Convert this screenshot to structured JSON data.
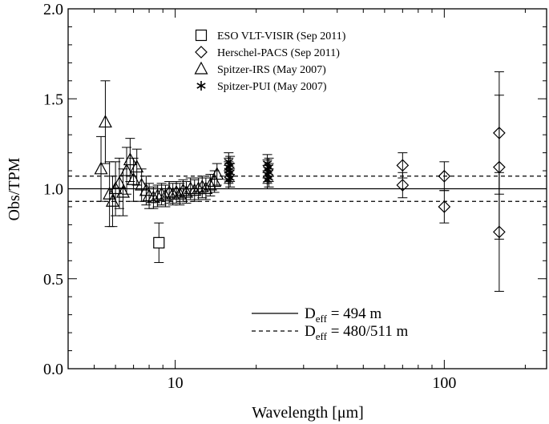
{
  "chart_data": {
    "type": "scatter",
    "xlabel": "Wavelength [μm]",
    "ylabel": "Obs/TPM",
    "xscale": "log",
    "xlim": [
      4,
      240
    ],
    "ylim": [
      0.0,
      2.0
    ],
    "x_ticks": [
      {
        "value": 10,
        "label": "10"
      },
      {
        "value": 100,
        "label": "100"
      }
    ],
    "y_ticks": [
      {
        "value": 0.0,
        "label": "0.0"
      },
      {
        "value": 0.5,
        "label": "0.5"
      },
      {
        "value": 1.0,
        "label": "1.0"
      },
      {
        "value": 1.5,
        "label": "1.5"
      },
      {
        "value": 2.0,
        "label": "2.0"
      }
    ],
    "reference_lines": [
      {
        "y": 1.0,
        "style": "solid"
      },
      {
        "y": 1.07,
        "style": "dashed"
      },
      {
        "y": 0.93,
        "style": "dashed"
      }
    ],
    "legend": {
      "placement": "top-center",
      "entries": [
        {
          "label": "ESO VLT-VISIR (Sep 2011)",
          "marker": "square"
        },
        {
          "label": "Herschel-PACS (Sep 2011)",
          "marker": "diamond"
        },
        {
          "label": "Spitzer-IRS (May 2007)",
          "marker": "triangle"
        },
        {
          "label": "Spitzer-PUI (May 2007)",
          "marker": "asterisk"
        }
      ]
    },
    "line_legend": {
      "placement": "bottom-center",
      "entries": [
        {
          "base": "D",
          "sub": "eff",
          "value": " = 494 m",
          "style": "solid"
        },
        {
          "base": "D",
          "sub": "eff",
          "value": " = 480/511 m",
          "style": "dashed"
        }
      ]
    },
    "series": [
      {
        "marker": "square",
        "points": [
          {
            "x": 8.7,
            "y": 0.7,
            "err": 0.11
          }
        ]
      },
      {
        "marker": "diamond",
        "points": [
          {
            "x": 70,
            "y": 1.13,
            "err": 0.07
          },
          {
            "x": 70,
            "y": 1.02,
            "err": 0.07
          },
          {
            "x": 100,
            "y": 1.07,
            "err": 0.08
          },
          {
            "x": 100,
            "y": 0.9,
            "err": 0.09
          },
          {
            "x": 160,
            "y": 1.31,
            "err": 0.34
          },
          {
            "x": 160,
            "y": 1.12,
            "err": 0.4
          },
          {
            "x": 160,
            "y": 0.76,
            "err": 0.33
          }
        ]
      },
      {
        "marker": "triangle",
        "points": [
          {
            "x": 5.3,
            "y": 1.11,
            "err": 0.18
          },
          {
            "x": 5.5,
            "y": 1.37,
            "err": 0.23
          },
          {
            "x": 5.7,
            "y": 0.97,
            "err": 0.18
          },
          {
            "x": 5.85,
            "y": 0.93,
            "err": 0.14
          },
          {
            "x": 6.0,
            "y": 1.0,
            "err": 0.15
          },
          {
            "x": 6.2,
            "y": 1.03,
            "err": 0.14
          },
          {
            "x": 6.4,
            "y": 0.98,
            "err": 0.13
          },
          {
            "x": 6.6,
            "y": 1.1,
            "err": 0.13
          },
          {
            "x": 6.8,
            "y": 1.16,
            "err": 0.12
          },
          {
            "x": 7.0,
            "y": 1.05,
            "err": 0.12
          },
          {
            "x": 7.2,
            "y": 1.12,
            "err": 0.1
          },
          {
            "x": 7.5,
            "y": 1.02,
            "err": 0.09
          },
          {
            "x": 7.8,
            "y": 0.99,
            "err": 0.08
          },
          {
            "x": 8.0,
            "y": 0.96,
            "err": 0.07
          },
          {
            "x": 8.3,
            "y": 0.95,
            "err": 0.06
          },
          {
            "x": 8.6,
            "y": 0.96,
            "err": 0.06
          },
          {
            "x": 8.9,
            "y": 0.97,
            "err": 0.06
          },
          {
            "x": 9.2,
            "y": 0.96,
            "err": 0.06
          },
          {
            "x": 9.5,
            "y": 0.98,
            "err": 0.06
          },
          {
            "x": 9.8,
            "y": 0.97,
            "err": 0.06
          },
          {
            "x": 10.1,
            "y": 0.98,
            "err": 0.06
          },
          {
            "x": 10.4,
            "y": 0.97,
            "err": 0.06
          },
          {
            "x": 10.7,
            "y": 0.99,
            "err": 0.06
          },
          {
            "x": 11.0,
            "y": 0.98,
            "err": 0.06
          },
          {
            "x": 11.4,
            "y": 1.0,
            "err": 0.06
          },
          {
            "x": 11.8,
            "y": 0.99,
            "err": 0.06
          },
          {
            "x": 12.2,
            "y": 1.0,
            "err": 0.06
          },
          {
            "x": 12.6,
            "y": 1.01,
            "err": 0.06
          },
          {
            "x": 13.0,
            "y": 1.0,
            "err": 0.06
          },
          {
            "x": 13.5,
            "y": 1.02,
            "err": 0.06
          },
          {
            "x": 14.0,
            "y": 1.04,
            "err": 0.06
          },
          {
            "x": 14.3,
            "y": 1.08,
            "err": 0.06
          }
        ]
      },
      {
        "marker": "asterisk",
        "points": [
          {
            "x": 15.8,
            "y": 1.15,
            "err": 0.05
          },
          {
            "x": 15.8,
            "y": 1.12,
            "err": 0.05
          },
          {
            "x": 15.8,
            "y": 1.1,
            "err": 0.05
          },
          {
            "x": 15.8,
            "y": 1.08,
            "err": 0.05
          },
          {
            "x": 15.8,
            "y": 1.05,
            "err": 0.05
          },
          {
            "x": 16.0,
            "y": 1.13,
            "err": 0.05
          },
          {
            "x": 16.0,
            "y": 1.09,
            "err": 0.05
          },
          {
            "x": 16.0,
            "y": 1.06,
            "err": 0.05
          },
          {
            "x": 22.0,
            "y": 1.14,
            "err": 0.05
          },
          {
            "x": 22.0,
            "y": 1.11,
            "err": 0.05
          },
          {
            "x": 22.0,
            "y": 1.08,
            "err": 0.05
          },
          {
            "x": 22.0,
            "y": 1.05,
            "err": 0.05
          },
          {
            "x": 22.3,
            "y": 1.12,
            "err": 0.05
          },
          {
            "x": 22.3,
            "y": 1.09,
            "err": 0.05
          },
          {
            "x": 22.3,
            "y": 1.06,
            "err": 0.05
          }
        ]
      }
    ]
  }
}
